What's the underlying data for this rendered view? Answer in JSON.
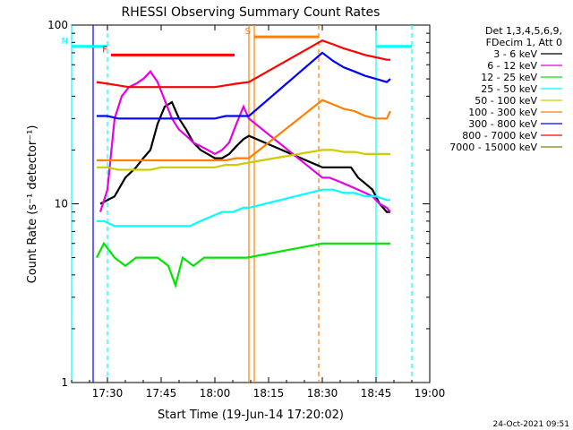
{
  "chart_data": {
    "type": "line",
    "title": "RHESSI Observing Summary Count Rates",
    "xlabel": "Start Time (19-Jun-14 17:20:02)",
    "ylabel": "Count Rate (s⁻¹ detector⁻¹)",
    "x_units": "minutes since 17:20:02",
    "xlim": [
      0,
      100
    ],
    "ylim": [
      1,
      100
    ],
    "y_scale": "log",
    "x_ticks": [
      {
        "value": 10,
        "label": "17:30"
      },
      {
        "value": 25,
        "label": "17:45"
      },
      {
        "value": 40,
        "label": "18:00"
      },
      {
        "value": 55,
        "label": "18:15"
      },
      {
        "value": 70,
        "label": "18:30"
      },
      {
        "value": 85,
        "label": "18:45"
      },
      {
        "value": 100,
        "label": "19:00"
      }
    ],
    "y_ticks": [
      {
        "value": 1,
        "label": "1"
      },
      {
        "value": 10,
        "label": "10"
      },
      {
        "value": 100,
        "label": "100"
      }
    ],
    "legend_header": [
      "Det 1,3,4,5,6,9,",
      "FDecim 1, Att 0"
    ],
    "legend_position": "right",
    "series": [
      {
        "name": "3 - 6 keV",
        "color": "#000000",
        "x": [
          8,
          12,
          15,
          18,
          20,
          22,
          24,
          26,
          28,
          30,
          32,
          34,
          36,
          38,
          40,
          42,
          44,
          46,
          48,
          49.5,
          70,
          72,
          74,
          76,
          78,
          80,
          82,
          84,
          86,
          88,
          89
        ],
        "y": [
          10,
          11,
          14,
          16,
          18,
          20,
          28,
          35,
          37,
          30,
          26,
          22,
          20,
          19,
          18,
          18,
          19,
          21,
          23,
          24,
          16,
          16,
          16,
          16,
          16,
          14,
          13,
          12,
          10,
          9,
          9
        ]
      },
      {
        "name": "6 - 12 keV",
        "color": "#e600e6",
        "x": [
          8,
          10,
          12,
          14,
          16,
          18,
          20,
          22,
          24,
          26,
          28,
          30,
          32,
          34,
          36,
          38,
          40,
          42,
          44,
          46,
          48,
          49.5,
          70,
          72,
          74,
          76,
          78,
          80,
          82,
          84,
          86,
          88,
          89
        ],
        "y": [
          9,
          12,
          30,
          40,
          45,
          47,
          50,
          55,
          48,
          38,
          30,
          26,
          24,
          22,
          21,
          20,
          19,
          20,
          22,
          28,
          35,
          30,
          14,
          14,
          13.5,
          13,
          12.5,
          12,
          11.5,
          11,
          10,
          9.5,
          9
        ]
      },
      {
        "name": "12 - 25 keV",
        "color": "#00e600",
        "x": [
          7,
          9,
          12,
          15,
          18,
          21,
          24,
          27,
          29,
          31,
          34,
          37,
          40,
          43,
          46,
          49,
          70,
          73,
          76,
          79,
          82,
          85,
          88,
          89
        ],
        "y": [
          5,
          6,
          5,
          4.5,
          5,
          5,
          5,
          4.5,
          3.5,
          5,
          4.5,
          5,
          5,
          5,
          5,
          5,
          6,
          6,
          6,
          6,
          6,
          6,
          6,
          6
        ]
      },
      {
        "name": "25 - 50 keV",
        "color": "#00ffff",
        "x": [
          7,
          9,
          12,
          15,
          18,
          21,
          24,
          27,
          30,
          33,
          36,
          39,
          42,
          45,
          48,
          49.5,
          70,
          73,
          76,
          79,
          82,
          85,
          88,
          89
        ],
        "y": [
          8,
          8,
          7.5,
          7.5,
          7.5,
          7.5,
          7.5,
          7.5,
          7.5,
          7.5,
          8,
          8.5,
          9,
          9,
          9.5,
          9.5,
          12,
          12,
          11.5,
          11.5,
          11,
          11,
          10.5,
          10.5
        ]
      },
      {
        "name": "50 - 100 keV",
        "color": "#cccc00",
        "x": [
          7,
          10,
          13,
          16,
          19,
          22,
          25,
          28,
          31,
          34,
          37,
          40,
          43,
          46,
          49.5,
          70,
          73,
          76,
          79,
          82,
          85,
          88,
          89
        ],
        "y": [
          16,
          16,
          15.5,
          15.5,
          15.5,
          15.5,
          16,
          16,
          16,
          16,
          16,
          16,
          16.5,
          16.5,
          17,
          20,
          20,
          19.5,
          19.5,
          19,
          19,
          19,
          19
        ]
      },
      {
        "name": "100 - 300 keV",
        "color": "#ff8000",
        "x": [
          7,
          10,
          13,
          16,
          19,
          22,
          25,
          28,
          31,
          34,
          37,
          40,
          43,
          46,
          49.5,
          70,
          73,
          76,
          79,
          82,
          85,
          88,
          89
        ],
        "y": [
          17.5,
          17.5,
          17.5,
          17.5,
          17.5,
          17.5,
          17.5,
          17.5,
          17.5,
          17.5,
          17.5,
          17.5,
          17.5,
          18,
          18,
          38,
          36,
          34,
          33,
          31,
          30,
          30,
          33
        ]
      },
      {
        "name": "300 - 800 keV",
        "color": "#0000ff",
        "x": [
          7,
          10,
          13,
          16,
          19,
          22,
          25,
          28,
          31,
          34,
          37,
          40,
          43,
          46,
          49.5,
          70,
          73,
          76,
          79,
          82,
          85,
          88,
          89
        ],
        "y": [
          31,
          31,
          30,
          30,
          30,
          30,
          30,
          30,
          30,
          30,
          30,
          30,
          31,
          31,
          31,
          70,
          63,
          58,
          55,
          52,
          50,
          48,
          50
        ]
      },
      {
        "name": "800 - 7000 keV",
        "color": "#ff0000",
        "x": [
          7,
          10,
          13,
          16,
          19,
          22,
          25,
          28,
          31,
          34,
          37,
          40,
          43,
          46,
          49.5,
          70,
          73,
          76,
          79,
          82,
          85,
          88,
          89
        ],
        "y": [
          48,
          47,
          46,
          45,
          45,
          45,
          45,
          45,
          45,
          45,
          45,
          45,
          46,
          47,
          48,
          82,
          78,
          74,
          71,
          68,
          66,
          64,
          64
        ]
      },
      {
        "name": "7000 - 15000 keV",
        "color": "#808000",
        "x": [],
        "y": []
      }
    ],
    "markers": {
      "lines": [
        {
          "x": 0,
          "style": "solid",
          "color": "#00ffff"
        },
        {
          "x": 6,
          "style": "solid",
          "color": "#0000ff"
        },
        {
          "x": 10,
          "style": "dashed",
          "color": "#00ffff"
        },
        {
          "x": 49.5,
          "style": "solid",
          "color": "#ff8000"
        },
        {
          "x": 51,
          "style": "solid",
          "color": "#ff8000"
        },
        {
          "x": 69,
          "style": "dashed",
          "color": "#ff8000"
        },
        {
          "x": 85,
          "style": "solid",
          "color": "#00ffff"
        },
        {
          "x": 95,
          "style": "dashed",
          "color": "#00ffff"
        }
      ],
      "bars": [
        {
          "label": "N",
          "color": "#00ffff",
          "segments": [
            [
              0,
              10
            ],
            [
              85,
              95
            ]
          ],
          "y": 76
        },
        {
          "label": "F",
          "color": "#ff0000",
          "segments": [
            [
              11,
              45.5
            ]
          ],
          "y": 68
        },
        {
          "label": "S",
          "color": "#ff8000",
          "segments": [
            [
              51,
              69
            ]
          ],
          "y": 86
        }
      ]
    }
  },
  "footer": {
    "timestamp": "24-Oct-2021 09:51"
  }
}
